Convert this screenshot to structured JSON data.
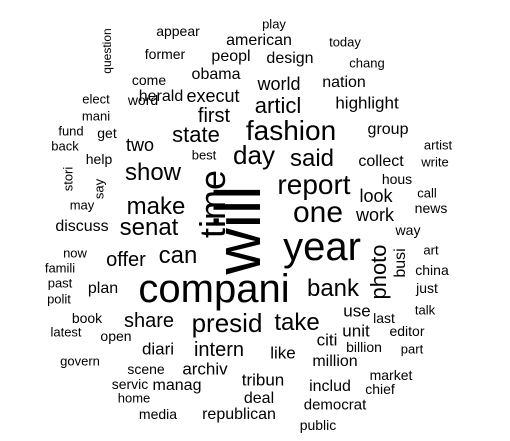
{
  "cloud": {
    "text_color": "#000000",
    "background": "#ffffff",
    "words": [
      {
        "text": "will",
        "weight": 56,
        "vertical": true
      },
      {
        "text": "year",
        "weight": 38
      },
      {
        "text": "compani",
        "weight": 38
      },
      {
        "text": "time",
        "weight": 34,
        "vertical": true
      },
      {
        "text": "one",
        "weight": 28
      },
      {
        "text": "fashion",
        "weight": 26
      },
      {
        "text": "report",
        "weight": 26
      },
      {
        "text": "presid",
        "weight": 25
      },
      {
        "text": "day",
        "weight": 25
      },
      {
        "text": "said",
        "weight": 23
      },
      {
        "text": "can",
        "weight": 23
      },
      {
        "text": "make",
        "weight": 23
      },
      {
        "text": "senat",
        "weight": 22
      },
      {
        "text": "show",
        "weight": 22
      },
      {
        "text": "bank",
        "weight": 22
      },
      {
        "text": "take",
        "weight": 22
      },
      {
        "text": "photo",
        "weight": 20,
        "vertical": true
      },
      {
        "text": "state",
        "weight": 21
      },
      {
        "text": "articl",
        "weight": 20
      },
      {
        "text": "intern",
        "weight": 20
      },
      {
        "text": "first",
        "weight": 19
      },
      {
        "text": "share",
        "weight": 19
      },
      {
        "text": "offer",
        "weight": 18
      },
      {
        "text": "world",
        "weight": 17
      },
      {
        "text": "execut",
        "weight": 17
      },
      {
        "text": "work",
        "weight": 17
      },
      {
        "text": "look",
        "weight": 17
      },
      {
        "text": "two",
        "weight": 17
      },
      {
        "text": "highlight",
        "weight": 16
      },
      {
        "text": "busi",
        "weight": 16,
        "vertical": true
      },
      {
        "text": "like",
        "weight": 16
      },
      {
        "text": "citi",
        "weight": 16
      },
      {
        "text": "unit",
        "weight": 16
      },
      {
        "text": "use",
        "weight": 16
      },
      {
        "text": "diari",
        "weight": 16
      },
      {
        "text": "archiv",
        "weight": 16
      },
      {
        "text": "million",
        "weight": 16
      },
      {
        "text": "tribun",
        "weight": 16
      },
      {
        "text": "obama",
        "weight": 16
      },
      {
        "text": "nation",
        "weight": 16
      },
      {
        "text": "design",
        "weight": 16
      },
      {
        "text": "collect",
        "weight": 16
      },
      {
        "text": "discuss",
        "weight": 15
      },
      {
        "text": "plan",
        "weight": 15
      },
      {
        "text": "herald",
        "weight": 15
      },
      {
        "text": "peopl",
        "weight": 15
      },
      {
        "text": "american",
        "weight": 15
      },
      {
        "text": "group",
        "weight": 15
      },
      {
        "text": "deal",
        "weight": 15
      },
      {
        "text": "manag",
        "weight": 15
      },
      {
        "text": "republican",
        "weight": 15
      },
      {
        "text": "includ",
        "weight": 15
      },
      {
        "text": "democrat",
        "weight": 15
      },
      {
        "text": "billion",
        "weight": 14
      },
      {
        "text": "hous",
        "weight": 14
      },
      {
        "text": "news",
        "weight": 14
      },
      {
        "text": "way",
        "weight": 14
      },
      {
        "text": "word",
        "weight": 14
      },
      {
        "text": "get",
        "weight": 14
      },
      {
        "text": "help",
        "weight": 14
      },
      {
        "text": "former",
        "weight": 14
      },
      {
        "text": "appear",
        "weight": 14
      },
      {
        "text": "come",
        "weight": 14
      },
      {
        "text": "last",
        "weight": 14
      },
      {
        "text": "just",
        "weight": 14
      },
      {
        "text": "china",
        "weight": 14
      },
      {
        "text": "scene",
        "weight": 14
      },
      {
        "text": "servic",
        "weight": 14
      },
      {
        "text": "open",
        "weight": 14
      },
      {
        "text": "book",
        "weight": 14
      },
      {
        "text": "public",
        "weight": 14
      },
      {
        "text": "media",
        "weight": 14
      },
      {
        "text": "market",
        "weight": 14
      },
      {
        "text": "chief",
        "weight": 14
      },
      {
        "text": "editor",
        "weight": 14
      },
      {
        "text": "artist",
        "weight": 13
      },
      {
        "text": "write",
        "weight": 13
      },
      {
        "text": "call",
        "weight": 13
      },
      {
        "text": "art",
        "weight": 13
      },
      {
        "text": "talk",
        "weight": 13
      },
      {
        "text": "part",
        "weight": 13
      },
      {
        "text": "play",
        "weight": 13
      },
      {
        "text": "today",
        "weight": 13
      },
      {
        "text": "chang",
        "weight": 13
      },
      {
        "text": "question",
        "weight": 13,
        "vertical": true
      },
      {
        "text": "elect",
        "weight": 13
      },
      {
        "text": "mani",
        "weight": 13
      },
      {
        "text": "fund",
        "weight": 13
      },
      {
        "text": "back",
        "weight": 13
      },
      {
        "text": "best",
        "weight": 13
      },
      {
        "text": "stori",
        "weight": 13,
        "vertical": true
      },
      {
        "text": "say",
        "weight": 13,
        "vertical": true
      },
      {
        "text": "may",
        "weight": 13
      },
      {
        "text": "now",
        "weight": 13
      },
      {
        "text": "famili",
        "weight": 13
      },
      {
        "text": "past",
        "weight": 13
      },
      {
        "text": "polit",
        "weight": 13
      },
      {
        "text": "latest",
        "weight": 13
      },
      {
        "text": "govern",
        "weight": 13
      },
      {
        "text": "home",
        "weight": 13
      }
    ]
  }
}
